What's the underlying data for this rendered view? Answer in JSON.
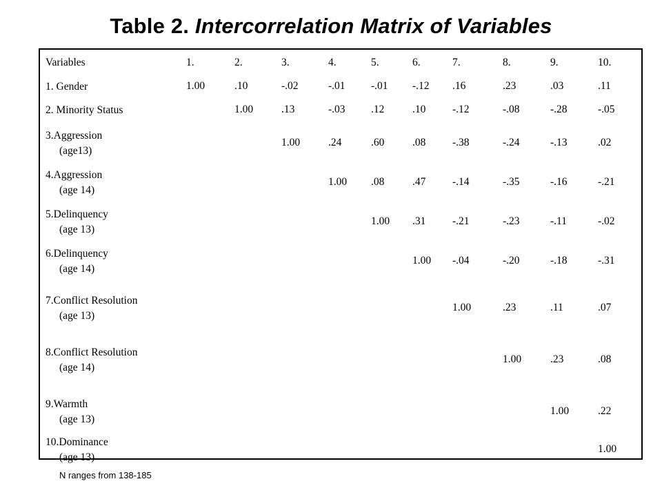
{
  "title": {
    "prefix": "Table 2. ",
    "italic": "Intercorrelation Matrix of Variables"
  },
  "table": {
    "header": [
      "Variables",
      "1.",
      "2.",
      "3.",
      "4.",
      "5.",
      "6.",
      "7.",
      "8.",
      "9.",
      "10."
    ],
    "rows": [
      {
        "label": [
          "1. Gender"
        ],
        "start": 0,
        "values": [
          "1.00",
          ".10",
          "-.02",
          "-.01",
          "-.01",
          "-.12",
          ".16",
          ".23",
          ".03",
          ".11"
        ]
      },
      {
        "label": [
          "2. Minority Status"
        ],
        "start": 1,
        "values": [
          "1.00",
          ".13",
          "-.03",
          ".12",
          ".10",
          "-.12",
          "-.08",
          "-.28",
          "-.05"
        ]
      },
      {
        "label": [
          "3.Aggression",
          "(age13)"
        ],
        "start": 2,
        "values": [
          "1.00",
          ".24",
          ".60",
          ".08",
          "-.38",
          "-.24",
          "-.13",
          ".02"
        ]
      },
      {
        "label": [
          "4.Aggression",
          "(age 14)"
        ],
        "start": 3,
        "values": [
          "1.00",
          ".08",
          ".47",
          "-.14",
          "-.35",
          "-.16",
          "-.21"
        ]
      },
      {
        "label": [
          "5.Delinquency",
          "(age 13)"
        ],
        "start": 4,
        "values": [
          "1.00",
          ".31",
          "-.21",
          "-.23",
          "-.11",
          "-.02"
        ]
      },
      {
        "label": [
          "6.Delinquency",
          "(age 14)"
        ],
        "start": 5,
        "values": [
          "1.00",
          "-.04",
          "-.20",
          "-.18",
          "-.31"
        ]
      },
      {
        "label": [
          "7.Conflict Resolution",
          "(age 13)"
        ],
        "start": 6,
        "values": [
          "1.00",
          ".23",
          ".11",
          ".07"
        ]
      },
      {
        "label": [
          "8.Conflict Resolution",
          "(age 14)"
        ],
        "start": 7,
        "values": [
          "1.00",
          ".23",
          ".08"
        ]
      },
      {
        "label": [
          "9.Warmth",
          "(age 13)"
        ],
        "start": 8,
        "values": [
          "1.00",
          ".22"
        ]
      },
      {
        "label": [
          "10.Dominance",
          "(age 13)"
        ],
        "start": 9,
        "values": [
          "1.00"
        ]
      }
    ]
  },
  "note": "N ranges from 138-185"
}
